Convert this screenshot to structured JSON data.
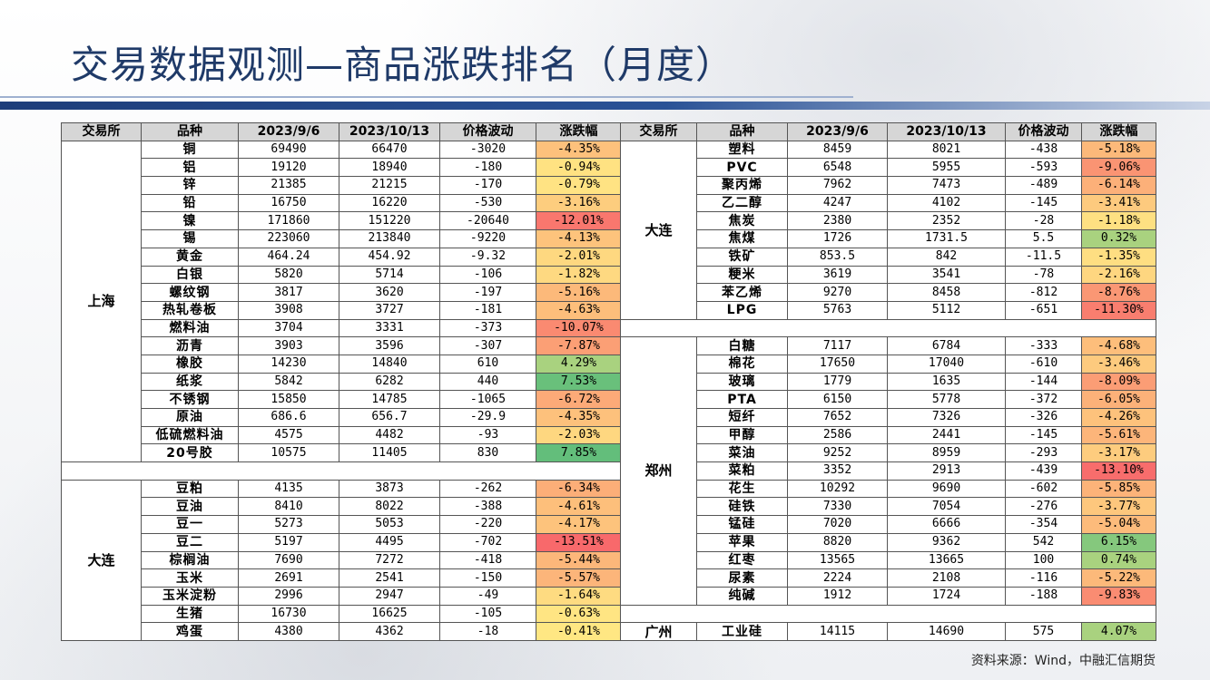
{
  "title": "交易数据观测—商品涨跌排名（月度）",
  "source": "资料来源：Wind，中融汇信期货",
  "headers": [
    "交易所",
    "品种",
    "2023/9/6",
    "2023/10/13",
    "价格波动",
    "涨跌幅"
  ],
  "left": {
    "groups": [
      {
        "exchange": "上海",
        "rows": [
          [
            "铜",
            "69490",
            "66470",
            "-3020",
            "-4.35%"
          ],
          [
            "铝",
            "19120",
            "18940",
            "-180",
            "-0.94%"
          ],
          [
            "锌",
            "21385",
            "21215",
            "-170",
            "-0.79%"
          ],
          [
            "铅",
            "16750",
            "16220",
            "-530",
            "-3.16%"
          ],
          [
            "镍",
            "171860",
            "151220",
            "-20640",
            "-12.01%"
          ],
          [
            "锡",
            "223060",
            "213840",
            "-9220",
            "-4.13%"
          ],
          [
            "黄金",
            "464.24",
            "454.92",
            "-9.32",
            "-2.01%"
          ],
          [
            "白银",
            "5820",
            "5714",
            "-106",
            "-1.82%"
          ],
          [
            "螺纹钢",
            "3817",
            "3620",
            "-197",
            "-5.16%"
          ],
          [
            "热轧卷板",
            "3908",
            "3727",
            "-181",
            "-4.63%"
          ],
          [
            "燃料油",
            "3704",
            "3331",
            "-373",
            "-10.07%"
          ],
          [
            "沥青",
            "3903",
            "3596",
            "-307",
            "-7.87%"
          ],
          [
            "橡胶",
            "14230",
            "14840",
            "610",
            "4.29%"
          ],
          [
            "纸浆",
            "5842",
            "6282",
            "440",
            "7.53%"
          ],
          [
            "不锈钢",
            "15850",
            "14785",
            "-1065",
            "-6.72%"
          ],
          [
            "原油",
            "686.6",
            "656.7",
            "-29.9",
            "-4.35%"
          ],
          [
            "低硫燃料油",
            "4575",
            "4482",
            "-93",
            "-2.03%"
          ],
          [
            "20号胶",
            "10575",
            "11405",
            "830",
            "7.85%"
          ]
        ]
      },
      {
        "exchange": "大连",
        "rows": [
          [
            "豆粕",
            "4135",
            "3873",
            "-262",
            "-6.34%"
          ],
          [
            "豆油",
            "8410",
            "8022",
            "-388",
            "-4.61%"
          ],
          [
            "豆一",
            "5273",
            "5053",
            "-220",
            "-4.17%"
          ],
          [
            "豆二",
            "5197",
            "4495",
            "-702",
            "-13.51%"
          ],
          [
            "棕榈油",
            "7690",
            "7272",
            "-418",
            "-5.44%"
          ],
          [
            "玉米",
            "2691",
            "2541",
            "-150",
            "-5.57%"
          ],
          [
            "玉米淀粉",
            "2996",
            "2947",
            "-49",
            "-1.64%"
          ],
          [
            "生猪",
            "16730",
            "16625",
            "-105",
            "-0.63%"
          ],
          [
            "鸡蛋",
            "4380",
            "4362",
            "-18",
            "-0.41%"
          ]
        ]
      }
    ]
  },
  "right": {
    "groups": [
      {
        "exchange": "大连",
        "rows": [
          [
            "塑料",
            "8459",
            "8021",
            "-438",
            "-5.18%"
          ],
          [
            "PVC",
            "6548",
            "5955",
            "-593",
            "-9.06%"
          ],
          [
            "聚丙烯",
            "7962",
            "7473",
            "-489",
            "-6.14%"
          ],
          [
            "乙二醇",
            "4247",
            "4102",
            "-145",
            "-3.41%"
          ],
          [
            "焦炭",
            "2380",
            "2352",
            "-28",
            "-1.18%"
          ],
          [
            "焦煤",
            "1726",
            "1731.5",
            "5.5",
            "0.32%"
          ],
          [
            "铁矿",
            "853.5",
            "842",
            "-11.5",
            "-1.35%"
          ],
          [
            "粳米",
            "3619",
            "3541",
            "-78",
            "-2.16%"
          ],
          [
            "苯乙烯",
            "9270",
            "8458",
            "-812",
            "-8.76%"
          ],
          [
            "LPG",
            "5763",
            "5112",
            "-651",
            "-11.30%"
          ]
        ]
      },
      {
        "exchange": "郑州",
        "rows": [
          [
            "白糖",
            "7117",
            "6784",
            "-333",
            "-4.68%"
          ],
          [
            "棉花",
            "17650",
            "17040",
            "-610",
            "-3.46%"
          ],
          [
            "玻璃",
            "1779",
            "1635",
            "-144",
            "-8.09%"
          ],
          [
            "PTA",
            "6150",
            "5778",
            "-372",
            "-6.05%"
          ],
          [
            "短纤",
            "7652",
            "7326",
            "-326",
            "-4.26%"
          ],
          [
            "甲醇",
            "2586",
            "2441",
            "-145",
            "-5.61%"
          ],
          [
            "菜油",
            "9252",
            "8959",
            "-293",
            "-3.17%"
          ],
          [
            "菜粕",
            "3352",
            "2913",
            "-439",
            "-13.10%"
          ],
          [
            "花生",
            "10292",
            "9690",
            "-602",
            "-5.85%"
          ],
          [
            "硅铁",
            "7330",
            "7054",
            "-276",
            "-3.77%"
          ],
          [
            "锰硅",
            "7020",
            "6666",
            "-354",
            "-5.04%"
          ],
          [
            "苹果",
            "8820",
            "9362",
            "542",
            "6.15%"
          ],
          [
            "红枣",
            "13565",
            "13665",
            "100",
            "0.74%"
          ],
          [
            "尿素",
            "2224",
            "2108",
            "-116",
            "-5.22%"
          ],
          [
            "纯碱",
            "1912",
            "1724",
            "-188",
            "-9.83%"
          ]
        ]
      },
      {
        "exchange": "广州",
        "rows": [
          [
            "工业硅",
            "14115",
            "14690",
            "575",
            "4.07%"
          ]
        ]
      }
    ]
  },
  "scale": {
    "min": -13.51,
    "max": 7.85,
    "low_color": "#f8696b",
    "mid_color": "#ffeb84",
    "high_color": "#63be7b"
  }
}
